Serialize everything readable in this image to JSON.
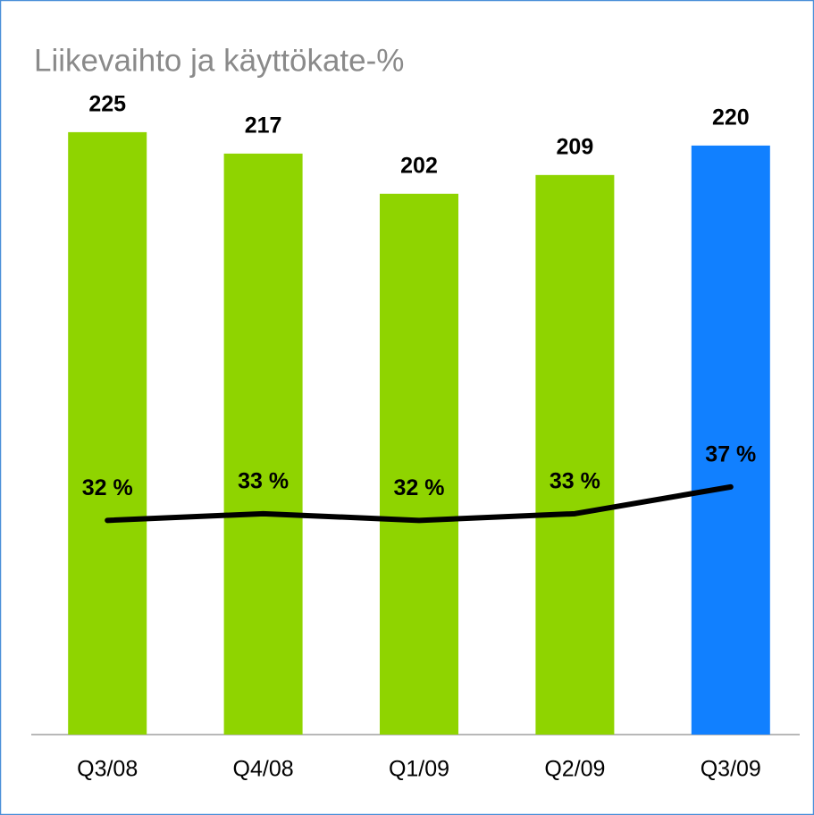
{
  "chart_data": {
    "type": "bar_line",
    "title": "Liikevaihto ja käyttökate-%",
    "categories": [
      "Q3/08",
      "Q4/08",
      "Q1/09",
      "Q2/09",
      "Q3/09"
    ],
    "ylim": [
      0,
      250
    ],
    "y2lim": [
      0,
      100
    ],
    "series": [
      {
        "name": "Liikevaihto",
        "type": "bar",
        "colors": [
          "#8fd400",
          "#8fd400",
          "#8fd400",
          "#8fd400",
          "#1180ff"
        ],
        "values": [
          225,
          217,
          202,
          209,
          220
        ]
      },
      {
        "name": "Käyttökate-%",
        "type": "line",
        "axis": "y2",
        "color": "#000000",
        "values": [
          32,
          33,
          32,
          33,
          37
        ],
        "value_labels": [
          "32 %",
          "33 %",
          "32 %",
          "33 %",
          "37 %"
        ]
      }
    ]
  }
}
